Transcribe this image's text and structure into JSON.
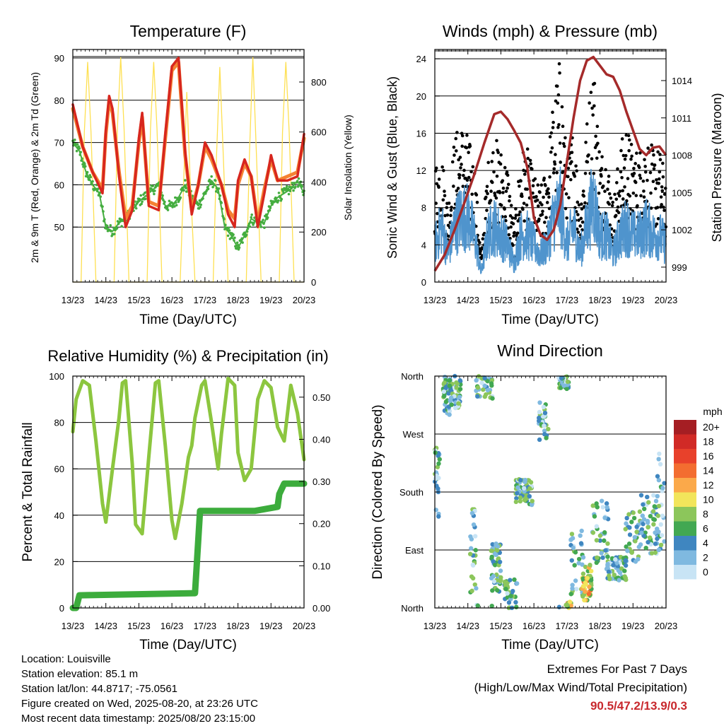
{
  "chart_data": [
    {
      "type": "line",
      "title": "Temperature (F)",
      "xlabel": "Time (Day/UTC)",
      "ylabel": "2m & 9m T (Red, Orange) & 2m Td (Green)",
      "y2label": "Solar Insolation (Yellow)",
      "x_ticks": [
        "13/23",
        "14/23",
        "15/23",
        "16/23",
        "17/23",
        "18/23",
        "19/23",
        "20/23"
      ],
      "ylim": [
        37,
        92
      ],
      "y_ticks": [
        50,
        60,
        70,
        80,
        90
      ],
      "y2lim": [
        0,
        930
      ],
      "y2_ticks": [
        0,
        200,
        400,
        600,
        800
      ],
      "grid": true,
      "colors": {
        "t2m": "#d7261e",
        "t9m": "#f58233",
        "td2m": "#44ad3f",
        "solar": "#fee052"
      },
      "series": [
        {
          "key": "t2m",
          "x": [
            13.0,
            13.3,
            13.6,
            13.9,
            14.0,
            14.1,
            14.2,
            14.4,
            14.6,
            14.8,
            15.0,
            15.1,
            15.3,
            15.6,
            15.8,
            16.0,
            16.2,
            16.4,
            16.6,
            16.8,
            17.0,
            17.2,
            17.5,
            17.7,
            17.9,
            18.0,
            18.2,
            18.4,
            18.6,
            18.8,
            19.0,
            19.2,
            19.5,
            19.8,
            20.0
          ],
          "y": [
            79,
            69,
            63,
            58,
            73,
            81,
            78,
            62,
            50,
            54,
            71,
            77,
            55,
            54,
            72,
            88,
            90,
            68,
            53,
            60,
            70,
            67,
            60,
            53,
            50,
            61,
            66,
            62,
            50,
            58,
            67,
            61,
            61,
            62,
            72
          ]
        },
        {
          "key": "t9m",
          "x": [
            13.0,
            13.3,
            13.6,
            13.9,
            14.0,
            14.1,
            14.2,
            14.4,
            14.6,
            14.8,
            15.0,
            15.1,
            15.3,
            15.6,
            15.8,
            16.0,
            16.2,
            16.4,
            16.6,
            16.8,
            17.0,
            17.2,
            17.5,
            17.7,
            17.9,
            18.0,
            18.2,
            18.4,
            18.6,
            18.8,
            19.0,
            19.2,
            19.5,
            19.8,
            20.0
          ],
          "y": [
            78,
            69,
            63,
            59,
            72,
            80,
            77,
            63,
            52,
            55,
            70,
            76,
            56,
            55,
            71,
            87,
            89,
            67,
            54,
            60,
            69,
            66,
            60,
            54,
            52,
            60,
            65,
            62,
            51,
            59,
            66,
            61,
            62,
            63,
            71
          ]
        },
        {
          "key": "td2m",
          "x": [
            13.0,
            13.2,
            13.4,
            13.6,
            13.8,
            14.0,
            14.2,
            14.4,
            14.6,
            14.8,
            15.0,
            15.3,
            15.6,
            15.8,
            16.0,
            16.2,
            16.4,
            16.6,
            16.8,
            17.0,
            17.2,
            17.4,
            17.6,
            17.8,
            18.0,
            18.2,
            18.4,
            18.6,
            18.8,
            19.0,
            19.2,
            19.4,
            19.6,
            19.8,
            20.0
          ],
          "y": [
            70,
            68,
            63,
            60,
            58,
            50,
            49,
            51,
            52,
            54,
            56,
            58,
            60,
            55,
            55,
            57,
            60,
            57,
            55,
            58,
            61,
            59,
            50,
            48,
            45,
            48,
            52,
            51,
            51,
            55,
            57,
            58,
            59,
            61,
            58
          ]
        },
        {
          "key": "solar",
          "x": [
            13.0,
            13.25,
            13.35,
            13.45,
            13.55,
            13.7,
            14.0,
            14.25,
            14.35,
            14.45,
            14.55,
            14.7,
            15.0,
            15.25,
            15.35,
            15.45,
            15.55,
            15.7,
            16.0,
            16.25,
            16.35,
            16.45,
            16.55,
            16.7,
            17.0,
            17.25,
            17.35,
            17.45,
            17.55,
            17.7,
            18.0,
            18.25,
            18.35,
            18.45,
            18.55,
            18.7,
            19.0,
            19.25,
            19.35,
            19.45,
            19.55,
            19.7,
            20.0
          ],
          "y": [
            0,
            0,
            600,
            880,
            600,
            0,
            0,
            0,
            620,
            900,
            620,
            0,
            0,
            0,
            610,
            880,
            610,
            0,
            0,
            0,
            380,
            760,
            420,
            0,
            0,
            0,
            500,
            860,
            520,
            0,
            0,
            0,
            520,
            900,
            540,
            0,
            0,
            0,
            600,
            880,
            600,
            0,
            0
          ]
        }
      ]
    },
    {
      "type": "line",
      "title": "Winds (mph) & Pressure (mb)",
      "xlabel": "Time (Day/UTC)",
      "ylabel": "Sonic Wind & Gust (Blue, Black)",
      "y2label": "Station Pressure (Maroon)",
      "x_ticks": [
        "13/23",
        "14/23",
        "15/23",
        "16/23",
        "17/23",
        "18/23",
        "19/23",
        "20/23"
      ],
      "ylim": [
        0,
        25
      ],
      "y_ticks": [
        0,
        4,
        8,
        12,
        16,
        20,
        24
      ],
      "y2lim": [
        997.8,
        1016.5
      ],
      "y2_ticks": [
        999,
        1002,
        1005,
        1008,
        1011,
        1014
      ],
      "grid": true,
      "colors": {
        "wind": "#4f94cd",
        "gust": "#000000",
        "pressure": "#a52a2a"
      },
      "series": [
        {
          "key": "pressure",
          "x": [
            13.0,
            13.3,
            13.6,
            13.9,
            14.2,
            14.5,
            14.8,
            15.0,
            15.2,
            15.4,
            15.6,
            15.8,
            16.0,
            16.2,
            16.4,
            16.6,
            16.8,
            17.0,
            17.2,
            17.4,
            17.6,
            17.8,
            18.0,
            18.2,
            18.4,
            18.6,
            18.8,
            19.0,
            19.2,
            19.4,
            19.6,
            19.8,
            20.0
          ],
          "y": [
            998.7,
            1000.0,
            1002.0,
            1004.2,
            1006.5,
            1009.0,
            1011.3,
            1011.5,
            1010.9,
            1010.0,
            1009.0,
            1007.0,
            1003.0,
            1001.6,
            1001.2,
            1002.0,
            1004.0,
            1007.5,
            1011.0,
            1014.0,
            1015.6,
            1015.9,
            1015.2,
            1014.5,
            1014.3,
            1013.2,
            1011.5,
            1010.0,
            1008.5,
            1008.0,
            1008.6,
            1008.7,
            1008.0
          ]
        }
      ],
      "wind_profile": {
        "x": [
          13.0,
          13.2,
          13.4,
          13.6,
          13.8,
          14.0,
          14.2,
          14.4,
          14.6,
          14.8,
          15.0,
          15.2,
          15.4,
          15.6,
          15.8,
          16.0,
          16.2,
          16.4,
          16.6,
          16.8,
          17.0,
          17.2,
          17.4,
          17.6,
          17.8,
          18.0,
          18.2,
          18.4,
          18.6,
          18.8,
          19.0,
          19.2,
          19.4,
          19.6,
          19.8,
          20.0
        ],
        "wind": [
          4,
          6,
          3,
          6,
          7,
          7,
          5,
          1,
          5,
          6,
          5,
          4,
          2,
          5,
          5,
          4,
          3,
          4,
          7,
          8,
          4,
          6,
          3,
          6,
          9,
          5,
          5,
          3,
          5,
          6,
          5,
          5,
          6,
          5,
          5,
          4
        ],
        "gust": [
          9,
          10,
          6,
          11,
          12,
          11,
          9,
          2,
          9,
          11,
          10,
          9,
          4,
          10,
          10,
          8,
          7,
          9,
          14,
          17,
          9,
          12,
          6,
          12,
          17,
          10,
          10,
          6,
          10,
          12,
          10,
          10,
          11,
          10,
          10,
          8
        ]
      }
    },
    {
      "type": "line",
      "title": "Relative Humidity (%) & Precipitation (in)",
      "xlabel": "Time (Day/UTC)",
      "ylabel": "Percent & Total Rainfall",
      "x_ticks": [
        "13/23",
        "14/23",
        "15/23",
        "16/23",
        "17/23",
        "18/23",
        "19/23",
        "20/23"
      ],
      "ylim": [
        0,
        100
      ],
      "y_ticks": [
        0,
        20,
        40,
        60,
        80,
        100
      ],
      "y2lim": [
        0,
        0.55
      ],
      "y2_ticks": [
        "0.00",
        "0.10",
        "0.20",
        "0.30",
        "0.40",
        "0.50"
      ],
      "grid": true,
      "colors": {
        "rh": "#8cc63f",
        "precip": "#3cac3c"
      },
      "series": [
        {
          "key": "rh",
          "x": [
            13.0,
            13.1,
            13.3,
            13.5,
            13.7,
            13.9,
            14.0,
            14.2,
            14.4,
            14.5,
            14.6,
            14.8,
            14.9,
            15.1,
            15.3,
            15.5,
            15.6,
            15.8,
            16.0,
            16.1,
            16.3,
            16.5,
            16.6,
            16.7,
            16.9,
            17.0,
            17.2,
            17.4,
            17.5,
            17.7,
            17.9,
            18.0,
            18.2,
            18.4,
            18.6,
            18.8,
            19.0,
            19.2,
            19.4,
            19.6,
            19.8,
            20.0
          ],
          "y": [
            76,
            90,
            98,
            96,
            72,
            45,
            37,
            60,
            82,
            97,
            98,
            62,
            36,
            32,
            65,
            97,
            98,
            70,
            38,
            30,
            45,
            65,
            70,
            82,
            96,
            98,
            80,
            60,
            75,
            99,
            96,
            67,
            55,
            60,
            90,
            98,
            95,
            78,
            72,
            96,
            84,
            64
          ]
        },
        {
          "key": "precip",
          "x": [
            13.0,
            13.1,
            13.2,
            16.7,
            16.75,
            16.85,
            17.5,
            18.5,
            19.2,
            19.25,
            19.4,
            20.0
          ],
          "y": [
            0.0,
            0.0,
            0.03,
            0.035,
            0.1,
            0.23,
            0.23,
            0.23,
            0.24,
            0.27,
            0.295,
            0.295
          ]
        }
      ]
    },
    {
      "type": "scatter",
      "title": "Wind Direction",
      "xlabel": "Time (Day/UTC)",
      "ylabel": "Direction (Colored By Speed)",
      "x_ticks": [
        "13/23",
        "14/23",
        "15/23",
        "16/23",
        "17/23",
        "18/23",
        "19/23",
        "20/23"
      ],
      "y_ticks": [
        "North",
        "East",
        "South",
        "West",
        "North"
      ],
      "ylim": [
        0,
        360
      ],
      "grid": true,
      "colorbar": {
        "title": "mph",
        "labels": [
          "20+",
          "18",
          "16",
          "14",
          "12",
          "10",
          "8",
          "6",
          "4",
          "2",
          "0"
        ],
        "colors": [
          "#a51e23",
          "#d12a26",
          "#e8412b",
          "#f36d30",
          "#fba94a",
          "#f2e55b",
          "#8cc65b",
          "#42a852",
          "#3f86c0",
          "#7fb9e0",
          "#c8e4f5"
        ]
      },
      "clusters": [
        {
          "x": 13.05,
          "dx": 0.1,
          "d": 200,
          "dd": 60,
          "n": 30
        },
        {
          "x": 13.35,
          "dx": 0.1,
          "d": 330,
          "dd": 30,
          "n": 30
        },
        {
          "x": 13.6,
          "dx": 0.18,
          "d": 335,
          "dd": 25,
          "n": 60
        },
        {
          "x": 14.15,
          "dx": 0.1,
          "d": 90,
          "dd": 70,
          "n": 25
        },
        {
          "x": 14.5,
          "dx": 0.25,
          "d": 345,
          "dd": 20,
          "n": 40
        },
        {
          "x": 14.85,
          "dx": 0.15,
          "d": 60,
          "dd": 40,
          "n": 50
        },
        {
          "x": 15.3,
          "dx": 0.2,
          "d": 20,
          "dd": 25,
          "n": 30
        },
        {
          "x": 15.7,
          "dx": 0.25,
          "d": 180,
          "dd": 20,
          "n": 60
        },
        {
          "x": 16.3,
          "dx": 0.15,
          "d": 290,
          "dd": 30,
          "n": 30
        },
        {
          "x": 16.9,
          "dx": 0.15,
          "d": 350,
          "dd": 12,
          "n": 30
        },
        {
          "x": 17.05,
          "dx": 0.08,
          "d": 5,
          "dd": 5,
          "n": 12
        },
        {
          "x": 17.3,
          "dx": 0.2,
          "d": 70,
          "dd": 50,
          "n": 30
        },
        {
          "x": 17.6,
          "dx": 0.15,
          "d": 40,
          "dd": 30,
          "n": 50
        },
        {
          "x": 18.0,
          "dx": 0.25,
          "d": 120,
          "dd": 50,
          "n": 40
        },
        {
          "x": 18.5,
          "dx": 0.3,
          "d": 60,
          "dd": 20,
          "n": 60
        },
        {
          "x": 19.0,
          "dx": 0.25,
          "d": 110,
          "dd": 40,
          "n": 40
        },
        {
          "x": 19.5,
          "dx": 0.25,
          "d": 130,
          "dd": 50,
          "n": 50
        },
        {
          "x": 19.85,
          "dx": 0.12,
          "d": 160,
          "dd": 80,
          "n": 25
        }
      ]
    }
  ],
  "footer": {
    "location": "Location: Louisville",
    "elevation": "Station elevation: 85.1 m",
    "latlon": "Station lat/lon: 44.8717; -75.0561",
    "created": "Figure created on Wed, 2025-08-20, at 23:26 UTC",
    "recent": "Most recent data timestamp: 2025/08/20 23:15:00"
  },
  "extremes": {
    "title": "Extremes For Past 7 Days",
    "subtitle": "(High/Low/Max Wind/Total Precipitation)",
    "values": "90.5/47.2/13.9/0.3"
  }
}
